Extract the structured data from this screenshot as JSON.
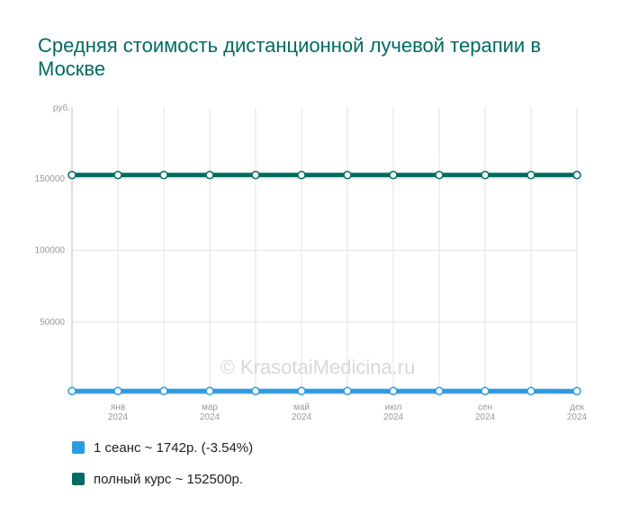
{
  "chart_data": {
    "type": "line",
    "title": "Средняя стоимость дистанционной лучевой терапии в Москве",
    "ylabel": "руб.",
    "ylim": [
      0,
      200000
    ],
    "y_ticks": [
      {
        "value": 50000,
        "label": "50000"
      },
      {
        "value": 100000,
        "label": "100000"
      },
      {
        "value": 150000,
        "label": "150000"
      }
    ],
    "x_count": 12,
    "x_tick_labels": [
      {
        "index": 1,
        "month": "янв",
        "year": "2024"
      },
      {
        "index": 3,
        "month": "мар",
        "year": "2024"
      },
      {
        "index": 5,
        "month": "май",
        "year": "2024"
      },
      {
        "index": 7,
        "month": "июл",
        "year": "2024"
      },
      {
        "index": 9,
        "month": "сен",
        "year": "2024"
      },
      {
        "index": 11,
        "month": "дек",
        "year": "2024"
      }
    ],
    "grid": true,
    "watermark": "© KrasotaiMedicina.ru",
    "series": [
      {
        "name": "1 сеанс",
        "color": "#2b9be0",
        "values": [
          1806,
          1806,
          1806,
          1806,
          1806,
          1806,
          1806,
          1806,
          1806,
          1806,
          1806,
          1742
        ]
      },
      {
        "name": "полный курс",
        "color": "#006b5f",
        "values": [
          152500,
          152500,
          152500,
          152500,
          152500,
          152500,
          152500,
          152500,
          152500,
          152500,
          152500,
          152500
        ]
      }
    ]
  },
  "legend": [
    {
      "label": "1 сеанс ~ 1742р. (-3.54%)",
      "color": "#2b9be0"
    },
    {
      "label": "полный курс ~ 152500р.",
      "color": "#006b5f"
    }
  ]
}
